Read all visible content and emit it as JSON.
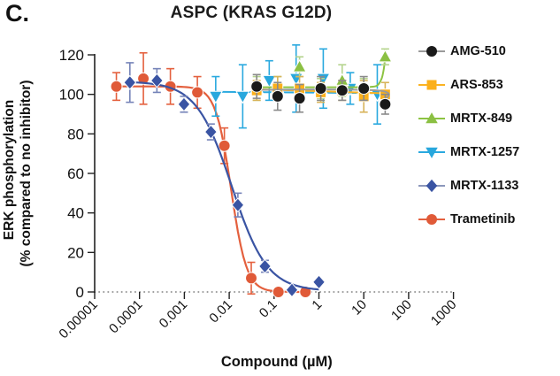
{
  "panel_label": "C.",
  "title": "ASPC (KRAS G12D)",
  "axes": {
    "x": {
      "label": "Compound (µM)",
      "scale": "log",
      "tick_labels": [
        "0.00001",
        "0.0001",
        "0.001",
        "0.01",
        "0.1",
        "1",
        "10",
        "100",
        "1000"
      ],
      "tick_values": [
        1e-05,
        0.0001,
        0.001,
        0.01,
        0.1,
        1,
        10,
        100,
        1000
      ],
      "range": [
        1e-05,
        1000
      ]
    },
    "y": {
      "label_line1": "ERK phosphorylation",
      "label_line2": "(% compared to no inhibitor)",
      "tick_labels": [
        "0",
        "20",
        "40",
        "60",
        "80",
        "100",
        "120"
      ],
      "tick_values": [
        0,
        20,
        40,
        60,
        80,
        100,
        120
      ],
      "range": [
        0,
        120
      ]
    }
  },
  "zero_line": {
    "y": 0,
    "style": "dotted",
    "color": "#9a9a9a"
  },
  "chart_data": {
    "type": "scatter",
    "subtype": "dose-response-curves",
    "title": "ASPC (KRAS G12D)",
    "xlabel": "Compound (µM)",
    "ylabel": "ERK phosphorylation (% compared to no inhibitor)",
    "xlim": [
      1e-05,
      1000
    ],
    "ylim": [
      0,
      120
    ],
    "grid": false,
    "legend_position": "right",
    "series": [
      {
        "name": "AMG-510",
        "marker": "circle",
        "color": "#1a1a1a",
        "line_color": "#9a9a9a",
        "err_color": "#8a8a8a",
        "x": [
          0.041,
          0.12,
          0.37,
          1.1,
          3.3,
          10,
          30
        ],
        "y": [
          104,
          99,
          98,
          103,
          102,
          103,
          95
        ],
        "err": [
          6,
          7,
          7,
          6,
          5,
          6,
          5
        ],
        "curve_pts": [
          [
            0.041,
            102.3
          ],
          [
            20,
            102
          ],
          [
            30,
            97
          ]
        ]
      },
      {
        "name": "ARS-853",
        "marker": "square",
        "color": "#fbb01b",
        "line_color": "#fbb322",
        "err_color": "#d8b45a",
        "x": [
          0.041,
          0.12,
          0.37,
          1.1,
          3.3,
          10,
          30
        ],
        "y": [
          102,
          103,
          103,
          101,
          102,
          99,
          100
        ],
        "err": [
          5,
          6,
          6,
          5,
          5,
          8,
          6
        ],
        "curve_pts": [
          [
            0.041,
            102.6
          ],
          [
            30,
            100.5
          ]
        ]
      },
      {
        "name": "MRTX-849",
        "marker": "triangle-up",
        "color": "#8bc043",
        "line_color": "#8cc342",
        "err_color": "#b5d48e",
        "x": [
          0.041,
          0.12,
          0.37,
          1.1,
          3.3,
          10,
          30
        ],
        "y": [
          103,
          103,
          114,
          103,
          107,
          103,
          119
        ],
        "err": [
          6,
          6,
          5,
          5,
          8,
          5,
          4
        ],
        "curve_pts": [
          [
            0.041,
            103.6
          ],
          [
            6,
            103.6
          ],
          [
            14,
            103.8
          ],
          [
            20,
            104.5
          ],
          [
            25,
            108
          ],
          [
            28,
            113
          ],
          [
            30,
            118.5
          ]
        ]
      },
      {
        "name": "MRTX-1257",
        "marker": "triangle-down",
        "color": "#28a7dd",
        "line_color": "#2aa9df",
        "err_color": "#2aa9df",
        "x": [
          0.005,
          0.02,
          0.078,
          0.31,
          1.25,
          5,
          20
        ],
        "y": [
          99,
          99,
          107,
          108,
          108,
          103,
          100
        ],
        "err": [
          10,
          16,
          10,
          17,
          15,
          8,
          15
        ],
        "curve_pts": [
          [
            0.005,
            101.3
          ],
          [
            20,
            100.6
          ]
        ]
      },
      {
        "name": "MRTX-1133",
        "marker": "diamond",
        "color": "#3a54a3",
        "line_color": "#3a54a3",
        "err_color": "#7583b8",
        "x": [
          6.1e-05,
          0.000244,
          0.00098,
          0.0039,
          0.0156,
          0.0625,
          0.25,
          1
        ],
        "y": [
          106,
          107,
          95,
          81,
          44,
          13,
          1,
          5
        ],
        "err": [
          10,
          6,
          4,
          4,
          6,
          3,
          0,
          0
        ],
        "fit": {
          "top": 106.5,
          "bottom": 0.5,
          "ec50": 0.0114,
          "hill": 1.1,
          "xmin": 6.1e-05,
          "xmax": 1
        }
      },
      {
        "name": "Trametinib",
        "marker": "circle",
        "color": "#e05a38",
        "line_color": "#e4603e",
        "err_color": "#e4603e",
        "x": [
          3.05e-05,
          0.000122,
          0.000488,
          0.00195,
          0.0078,
          0.031,
          0.125,
          0.5
        ],
        "y": [
          104,
          108,
          104,
          101,
          74,
          7,
          0,
          0
        ],
        "err": [
          7,
          13,
          9,
          8,
          9,
          8,
          2,
          2
        ],
        "fit": {
          "top": 104,
          "bottom": 0,
          "ec50": 0.011,
          "hill": 2.5,
          "xmin": 3.05e-05,
          "xmax": 0.5
        }
      }
    ]
  },
  "legend": {
    "entries": [
      {
        "label": "AMG-510",
        "marker": "circle",
        "color": "#1a1a1a",
        "line_color": "#9a9a9a"
      },
      {
        "label": "ARS-853",
        "marker": "square",
        "color": "#fbb01b",
        "line_color": "#fbb322"
      },
      {
        "label": "MRTX-849",
        "marker": "triangle-up",
        "color": "#8bc043",
        "line_color": "#8cc342"
      },
      {
        "label": "MRTX-1257",
        "marker": "triangle-down",
        "color": "#28a7dd",
        "line_color": "#2aa9df"
      },
      {
        "label": "MRTX-1133",
        "marker": "diamond",
        "color": "#3a54a3",
        "line_color": "#8b97bb"
      },
      {
        "label": "Trametinib",
        "marker": "circle",
        "color": "#e05a38",
        "line_color": "#e4603e"
      }
    ]
  }
}
